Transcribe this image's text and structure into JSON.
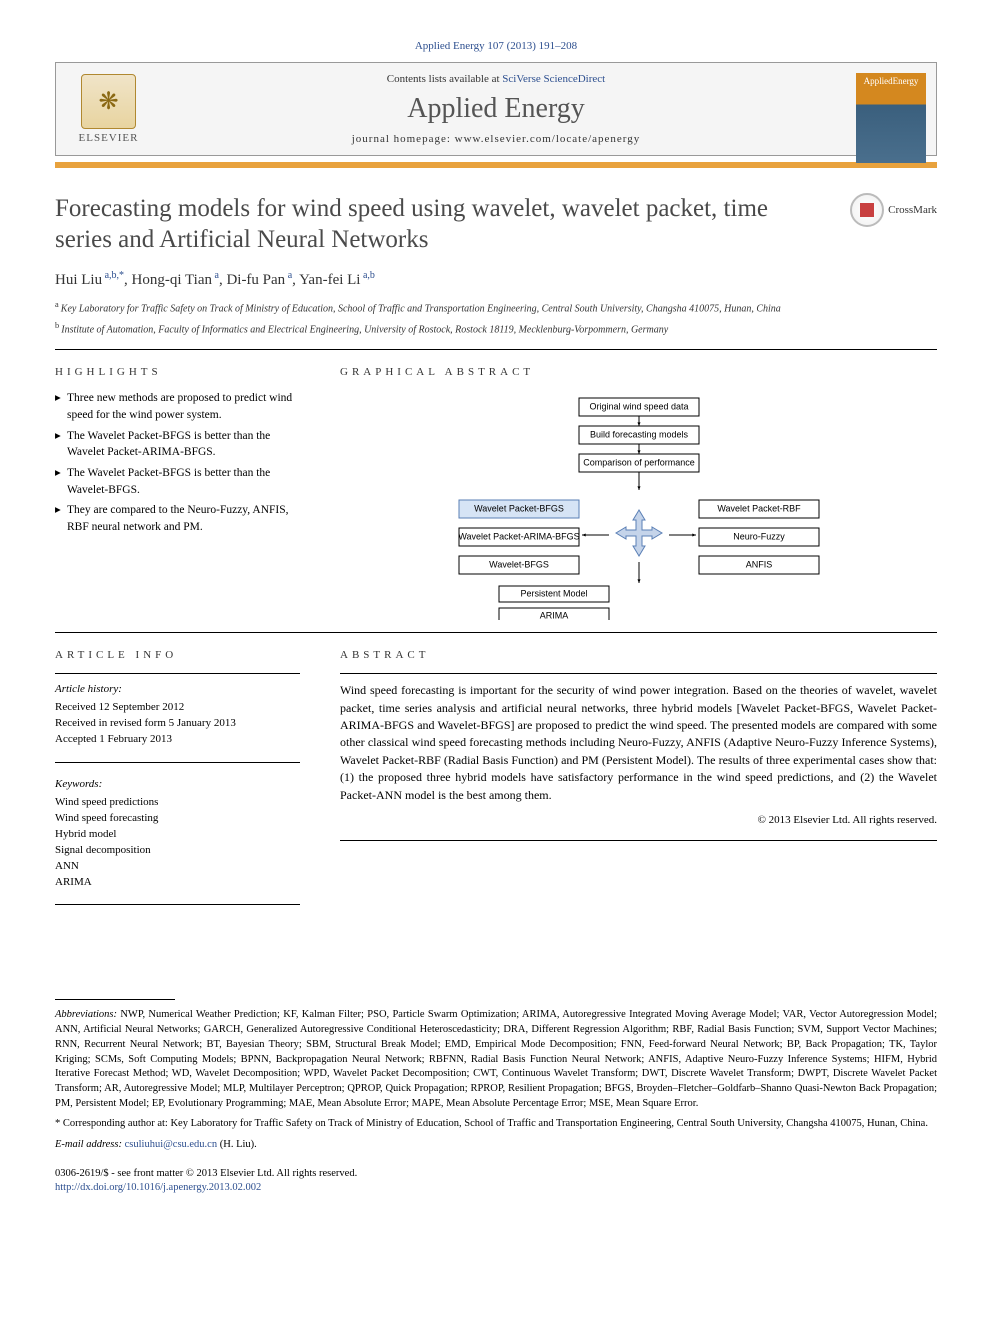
{
  "citation": "Applied Energy 107 (2013) 191–208",
  "header": {
    "contents_prefix": "Contents lists available at ",
    "contents_link": "SciVerse ScienceDirect",
    "journal_name": "Applied Energy",
    "homepage_prefix": "journal homepage: ",
    "homepage_url": "www.elsevier.com/locate/apenergy",
    "elsevier_label": "ELSEVIER",
    "cover_text": "AppliedEnergy"
  },
  "crossmark_label": "CrossMark",
  "title": "Forecasting models for wind speed using wavelet, wavelet packet, time series and Artificial Neural Networks",
  "authors_html": "Hui Liu",
  "authors": [
    {
      "name": "Hui Liu",
      "sup": "a,b,*"
    },
    {
      "name": "Hong-qi Tian",
      "sup": "a"
    },
    {
      "name": "Di-fu Pan",
      "sup": "a"
    },
    {
      "name": "Yan-fei Li",
      "sup": "a,b"
    }
  ],
  "affiliations": {
    "a": "Key Laboratory for Traffic Safety on Track of Ministry of Education, School of Traffic and Transportation Engineering, Central South University, Changsha 410075, Hunan, China",
    "b": "Institute of Automation, Faculty of Informatics and Electrical Engineering, University of Rostock, Rostock 18119, Mecklenburg-Vorpommern, Germany"
  },
  "highlights_head": "HIGHLIGHTS",
  "highlights": [
    "Three new methods are proposed to predict wind speed for the wind power system.",
    "The Wavelet Packet-BFGS is better than the Wavelet Packet-ARIMA-BFGS.",
    "The Wavelet Packet-BFGS is better than the Wavelet-BFGS.",
    "They are compared to the Neuro-Fuzzy, ANFIS, RBF neural network and PM."
  ],
  "ga_head": "GRAPHICAL ABSTRACT",
  "ga": {
    "top_boxes": [
      "Original wind speed data",
      "Build forecasting models",
      "Comparison of performance"
    ],
    "left_boxes": [
      "Wavelet Packet-BFGS",
      "Wavelet Packet-ARIMA-BFGS",
      "Wavelet-BFGS"
    ],
    "right_boxes": [
      "Wavelet Packet-RBF",
      "Neuro-Fuzzy",
      "ANFIS"
    ],
    "bottom_boxes": [
      "Persistent Model",
      "ARIMA"
    ],
    "box_fill": "#ffffff",
    "box_blue_fill": "#d6e4f5",
    "box_stroke": "#000000",
    "arrow_fill": "#c5d4ea",
    "arrow_stroke": "#5a7fb5"
  },
  "article_info_head": "ARTICLE INFO",
  "article_history_label": "Article history:",
  "article_history": [
    "Received 12 September 2012",
    "Received in revised form 5 January 2013",
    "Accepted 1 February 2013"
  ],
  "keywords_label": "Keywords:",
  "keywords": [
    "Wind speed predictions",
    "Wind speed forecasting",
    "Hybrid model",
    "Signal decomposition",
    "ANN",
    "ARIMA"
  ],
  "abstract_head": "ABSTRACT",
  "abstract_text": "Wind speed forecasting is important for the security of wind power integration. Based on the theories of wavelet, wavelet packet, time series analysis and artificial neural networks, three hybrid models [Wavelet Packet-BFGS, Wavelet Packet-ARIMA-BFGS and Wavelet-BFGS] are proposed to predict the wind speed. The presented models are compared with some other classical wind speed forecasting methods including Neuro-Fuzzy, ANFIS (Adaptive Neuro-Fuzzy Inference Systems), Wavelet Packet-RBF (Radial Basis Function) and PM (Persistent Model). The results of three experimental cases show that: (1) the proposed three hybrid models have satisfactory performance in the wind speed predictions, and (2) the Wavelet Packet-ANN model is the best among them.",
  "abstract_copyright": "© 2013 Elsevier Ltd. All rights reserved.",
  "abbreviations_label": "Abbreviations:",
  "abbreviations_text": " NWP, Numerical Weather Prediction; KF, Kalman Filter; PSO, Particle Swarm Optimization; ARIMA, Autoregressive Integrated Moving Average Model; VAR, Vector Autoregression Model; ANN, Artificial Neural Networks; GARCH, Generalized Autoregressive Conditional Heteroscedasticity; DRA, Different Regression Algorithm; RBF, Radial Basis Function; SVM, Support Vector Machines; RNN, Recurrent Neural Network; BT, Bayesian Theory; SBM, Structural Break Model; EMD, Empirical Mode Decomposition; FNN, Feed-forward Neural Network; BP, Back Propagation; TK, Taylor Kriging; SCMs, Soft Computing Models; BPNN, Backpropagation Neural Network; RBFNN, Radial Basis Function Neural Network; ANFIS, Adaptive Neuro-Fuzzy Inference Systems; HIFM, Hybrid Iterative Forecast Method; WD, Wavelet Decomposition; WPD, Wavelet Packet Decomposition; CWT, Continuous Wavelet Transform; DWT, Discrete Wavelet Transform; DWPT, Discrete Wavelet Packet Transform; AR, Autoregressive Model; MLP, Multilayer Perceptron; QPROP, Quick Propagation; RPROP, Resilient Propagation; BFGS, Broyden–Fletcher–Goldfarb–Shanno Quasi-Newton Back Propagation; PM, Persistent Model; EP, Evolutionary Programming; MAE, Mean Absolute Error; MAPE, Mean Absolute Percentage Error; MSE, Mean Square Error.",
  "corresponding_marker": "*",
  "corresponding_text": " Corresponding author at: Key Laboratory for Traffic Safety on Track of Ministry of Education, School of Traffic and Transportation Engineering, Central South University, Changsha 410075, Hunan, China.",
  "email_label": "E-mail address:",
  "email_address": "csuliuhui@csu.edu.cn",
  "email_author": " (H. Liu).",
  "footer": {
    "issn_line": "0306-2619/$ - see front matter © 2013 Elsevier Ltd. All rights reserved.",
    "doi": "http://dx.doi.org/10.1016/j.apenergy.2013.02.002"
  },
  "colors": {
    "link": "#2d4f8f",
    "orange_bar": "#e8a23d",
    "title_gray": "#4a4a4a"
  }
}
